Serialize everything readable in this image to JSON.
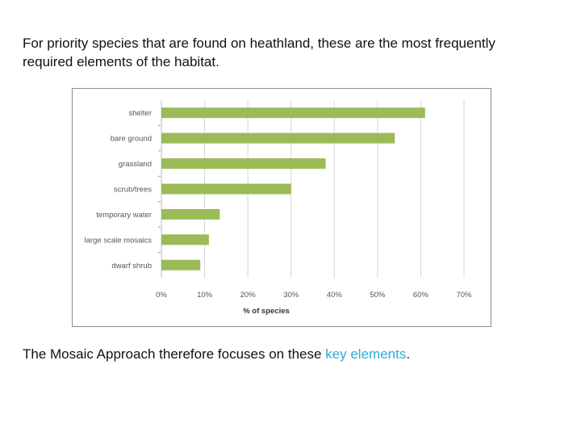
{
  "slide": {
    "intro_text": "For priority species that are found on heathland, these are the most frequently required elements of the habitat.",
    "outro_prefix": "The Mosaic Approach therefore focuses on these ",
    "outro_keyword": "key elements",
    "outro_suffix": ".",
    "keyword_color": "#31a9d8"
  },
  "chart_data": {
    "type": "bar",
    "orientation": "horizontal",
    "categories": [
      "shelter",
      "bare ground",
      "grassland",
      "scrub/trees",
      "temporary water",
      "large scale mosaics",
      "dwarf shrub"
    ],
    "values": [
      61,
      54,
      38,
      30,
      13.5,
      11,
      9
    ],
    "unit": "%",
    "xlabel": "% of species",
    "ylabel": "",
    "title": "",
    "xlim": [
      0,
      70
    ],
    "xticks": [
      "0%",
      "10%",
      "20%",
      "30%",
      "40%",
      "50%",
      "60%",
      "70%"
    ],
    "grid": "vertical",
    "legend": "none",
    "bar_color": "#9bbb59"
  }
}
